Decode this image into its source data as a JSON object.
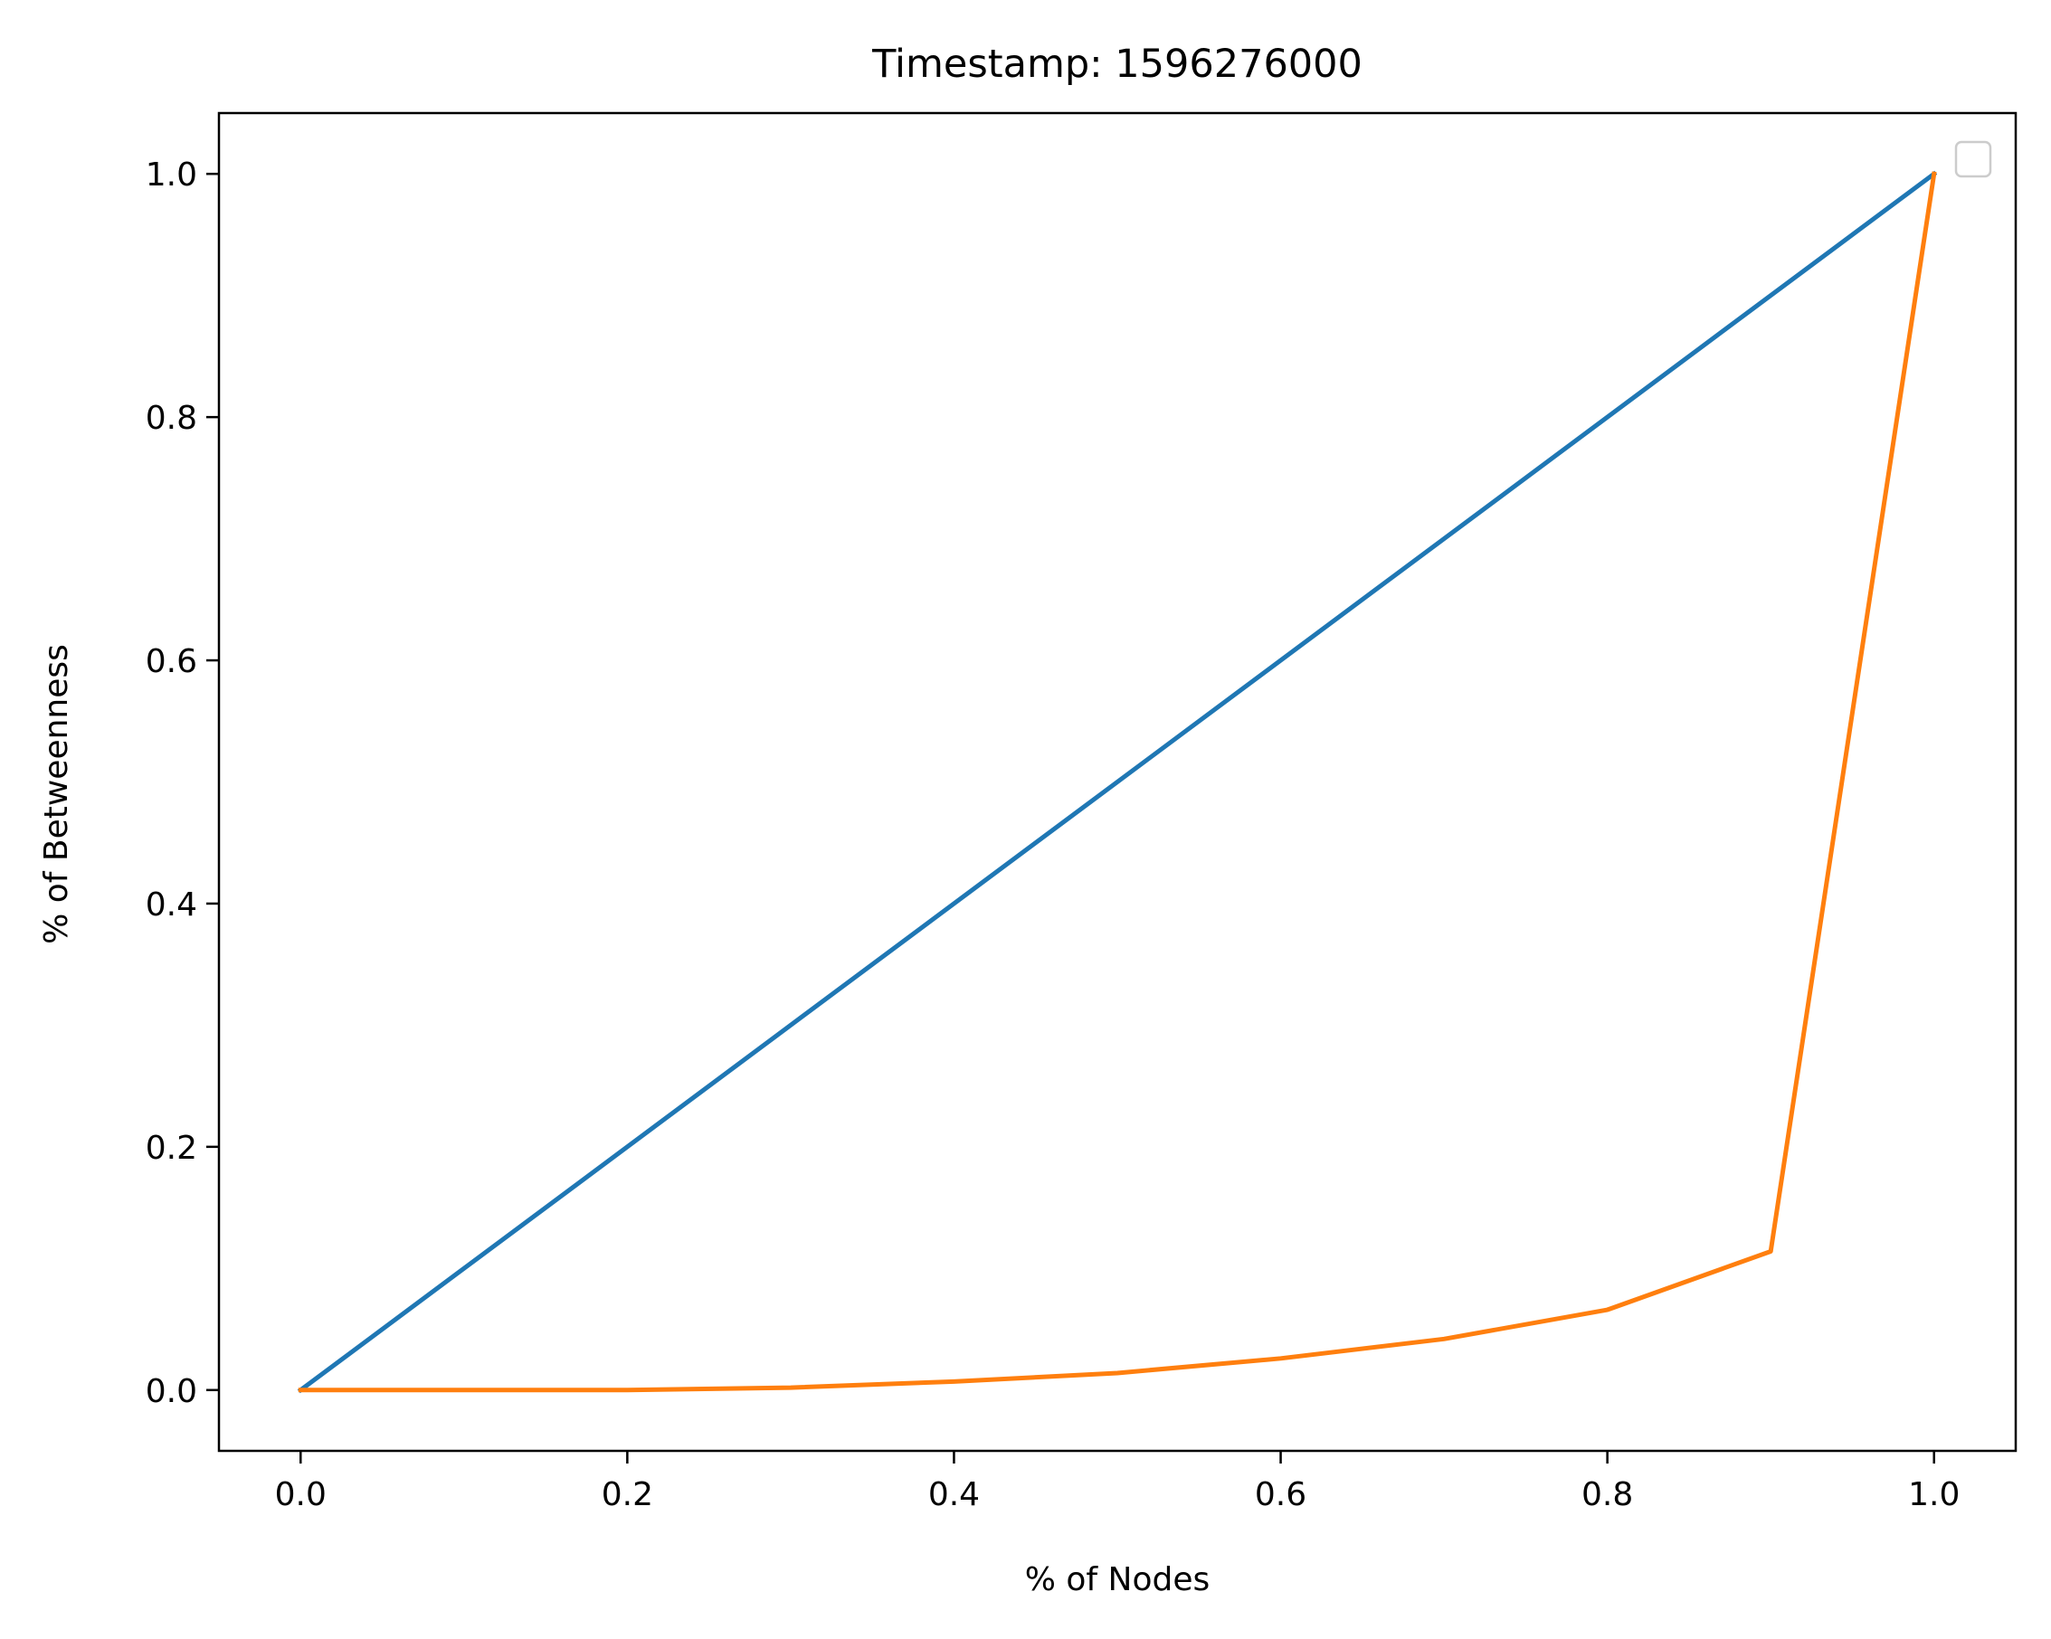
{
  "chart_data": {
    "type": "line",
    "title": "Timestamp: 1596276000",
    "xlabel": "% of Nodes",
    "ylabel": "% of Betweenness",
    "xlim": [
      -0.05,
      1.05
    ],
    "ylim": [
      -0.05,
      1.05
    ],
    "x_ticks": [
      "0.0",
      "0.2",
      "0.4",
      "0.6",
      "0.8",
      "1.0"
    ],
    "y_ticks": [
      "0.0",
      "0.2",
      "0.4",
      "0.6",
      "0.8",
      "1.0"
    ],
    "grid": false,
    "legend": {
      "placement": "upper right",
      "entries": []
    },
    "series": [
      {
        "color": "#1f77b4",
        "x": [
          0.0,
          1.0
        ],
        "y": [
          0.0,
          1.0
        ]
      },
      {
        "color": "#ff7f0e",
        "x": [
          0.0,
          0.1,
          0.2,
          0.3,
          0.4,
          0.5,
          0.6,
          0.7,
          0.8,
          0.9,
          1.0
        ],
        "y": [
          0.0,
          0.0,
          0.0,
          0.002,
          0.007,
          0.014,
          0.026,
          0.042,
          0.066,
          0.114,
          1.0
        ]
      }
    ]
  }
}
